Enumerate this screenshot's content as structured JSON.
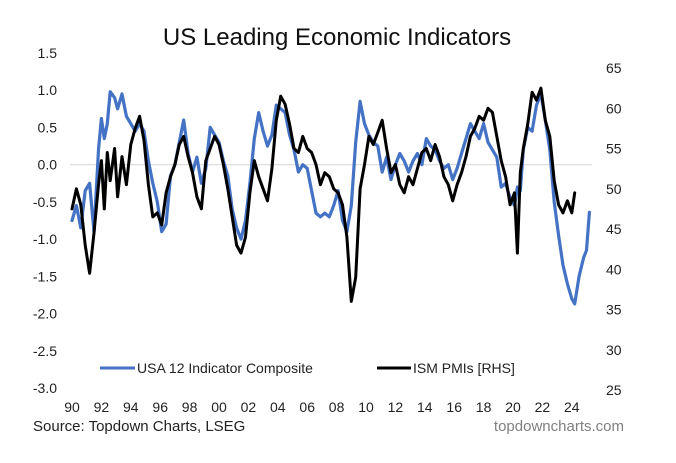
{
  "chart_data": {
    "type": "line",
    "title": "US Leading Economic Indicators",
    "xlabel": "",
    "ylabel": "",
    "y2label": "",
    "xlim": [
      1990,
      2025.5
    ],
    "ylim": [
      -3.0,
      1.5
    ],
    "y2lim": [
      25,
      65
    ],
    "x_ticks": [
      "90",
      "92",
      "94",
      "96",
      "98",
      "00",
      "02",
      "04",
      "06",
      "08",
      "10",
      "12",
      "14",
      "16",
      "18",
      "20",
      "22",
      "24"
    ],
    "x_tick_values": [
      1990,
      1992,
      1994,
      1996,
      1998,
      2000,
      2002,
      2004,
      2006,
      2008,
      2010,
      2012,
      2014,
      2016,
      2018,
      2020,
      2022,
      2024
    ],
    "y_ticks": [
      "1.5",
      "1.0",
      "0.5",
      "0.0",
      "-0.5",
      "-1.0",
      "-1.5",
      "-2.0",
      "-2.5",
      "-3.0"
    ],
    "y_tick_values": [
      1.5,
      1.0,
      0.5,
      0.0,
      -0.5,
      -1.0,
      -1.5,
      -2.0,
      -2.5,
      -3.0
    ],
    "y2_ticks": [
      "65",
      "60",
      "55",
      "50",
      "45",
      "40",
      "35",
      "30",
      "25"
    ],
    "y2_tick_values": [
      65,
      60,
      55,
      50,
      45,
      40,
      35,
      30,
      25
    ],
    "zero_line": true,
    "grid": false,
    "legend_position": "bottom",
    "series": [
      {
        "name": "USA 12 Indicator Composite",
        "axis": "left",
        "color": "#4472C4",
        "x": [
          1990.0,
          1990.3,
          1990.6,
          1990.9,
          1991.2,
          1991.5,
          1991.8,
          1992.0,
          1992.2,
          1992.4,
          1992.6,
          1992.9,
          1993.1,
          1993.4,
          1993.7,
          1994.0,
          1994.3,
          1994.6,
          1994.9,
          1995.2,
          1995.5,
          1995.8,
          1996.1,
          1996.4,
          1996.7,
          1997.0,
          1997.3,
          1997.6,
          1997.9,
          1998.2,
          1998.5,
          1998.8,
          1999.1,
          1999.4,
          1999.7,
          2000.0,
          2000.3,
          2000.6,
          2000.9,
          2001.2,
          2001.5,
          2001.8,
          2002.1,
          2002.4,
          2002.7,
          2003.0,
          2003.3,
          2003.6,
          2003.9,
          2004.2,
          2004.5,
          2004.8,
          2005.1,
          2005.4,
          2005.7,
          2006.0,
          2006.3,
          2006.6,
          2006.9,
          2007.2,
          2007.5,
          2007.8,
          2008.1,
          2008.4,
          2008.7,
          2009.0,
          2009.3,
          2009.6,
          2009.9,
          2010.2,
          2010.5,
          2010.8,
          2011.1,
          2011.4,
          2011.7,
          2012.0,
          2012.3,
          2012.6,
          2012.9,
          2013.2,
          2013.5,
          2013.8,
          2014.1,
          2014.4,
          2014.7,
          2015.0,
          2015.3,
          2015.6,
          2015.9,
          2016.2,
          2016.5,
          2016.8,
          2017.1,
          2017.4,
          2017.7,
          2018.0,
          2018.3,
          2018.6,
          2018.9,
          2019.2,
          2019.5,
          2019.8,
          2020.1,
          2020.3,
          2020.5,
          2020.7,
          2021.0,
          2021.3,
          2021.6,
          2021.9,
          2022.2,
          2022.5,
          2022.8,
          2023.1,
          2023.4,
          2023.7,
          2024.0,
          2024.2,
          2024.5,
          2024.8,
          2025.0,
          2025.2
        ],
        "values": [
          -0.75,
          -0.55,
          -0.85,
          -0.35,
          -0.25,
          -0.9,
          0.2,
          0.62,
          0.35,
          0.55,
          0.98,
          0.9,
          0.75,
          0.95,
          0.65,
          0.55,
          0.45,
          0.55,
          0.45,
          0.05,
          -0.25,
          -0.5,
          -0.9,
          -0.8,
          -0.15,
          0.0,
          0.3,
          0.6,
          0.15,
          -0.1,
          0.1,
          -0.25,
          -0.05,
          0.5,
          0.4,
          0.3,
          0.05,
          -0.15,
          -0.6,
          -0.85,
          -1.0,
          -0.75,
          -0.25,
          0.35,
          0.7,
          0.45,
          0.25,
          0.4,
          0.8,
          0.75,
          0.7,
          0.4,
          0.2,
          -0.1,
          0.0,
          -0.05,
          -0.35,
          -0.65,
          -0.7,
          -0.65,
          -0.7,
          -0.55,
          -0.35,
          -0.75,
          -0.9,
          -0.55,
          0.3,
          0.85,
          0.55,
          0.4,
          0.3,
          0.25,
          -0.1,
          0.1,
          -0.2,
          0.0,
          0.15,
          0.05,
          -0.1,
          0.05,
          0.15,
          0.0,
          0.35,
          0.25,
          0.2,
          0.05,
          -0.05,
          0.0,
          -0.2,
          -0.05,
          0.15,
          0.35,
          0.55,
          0.45,
          0.35,
          0.55,
          0.3,
          0.2,
          0.1,
          -0.3,
          -0.25,
          -0.45,
          -0.55,
          -0.3,
          -0.35,
          0.2,
          0.5,
          0.45,
          0.8,
          0.95,
          0.6,
          0.2,
          -0.5,
          -0.95,
          -1.35,
          -1.6,
          -1.8,
          -1.87,
          -1.5,
          -1.25,
          -1.15,
          -0.64
        ]
      },
      {
        "name": "ISM PMIs [RHS]",
        "axis": "right",
        "color": "#000000",
        "x": [
          1990.0,
          1990.3,
          1990.6,
          1990.9,
          1991.2,
          1991.5,
          1991.8,
          1992.0,
          1992.2,
          1992.4,
          1992.6,
          1992.9,
          1993.1,
          1993.4,
          1993.7,
          1994.0,
          1994.3,
          1994.6,
          1994.9,
          1995.2,
          1995.5,
          1995.8,
          1996.1,
          1996.4,
          1996.7,
          1997.0,
          1997.3,
          1997.6,
          1997.9,
          1998.2,
          1998.5,
          1998.8,
          1999.1,
          1999.4,
          1999.7,
          2000.0,
          2000.3,
          2000.6,
          2000.9,
          2001.2,
          2001.5,
          2001.8,
          2002.1,
          2002.4,
          2002.7,
          2003.0,
          2003.3,
          2003.6,
          2003.9,
          2004.2,
          2004.5,
          2004.8,
          2005.1,
          2005.4,
          2005.7,
          2006.0,
          2006.3,
          2006.6,
          2006.9,
          2007.2,
          2007.5,
          2007.8,
          2008.1,
          2008.4,
          2008.7,
          2009.0,
          2009.3,
          2009.6,
          2009.9,
          2010.2,
          2010.5,
          2010.8,
          2011.1,
          2011.4,
          2011.7,
          2012.0,
          2012.3,
          2012.6,
          2012.9,
          2013.2,
          2013.5,
          2013.8,
          2014.1,
          2014.4,
          2014.7,
          2015.0,
          2015.3,
          2015.6,
          2015.9,
          2016.2,
          2016.5,
          2016.8,
          2017.1,
          2017.4,
          2017.7,
          2018.0,
          2018.3,
          2018.6,
          2018.9,
          2019.2,
          2019.5,
          2019.8,
          2020.1,
          2020.3,
          2020.5,
          2020.7,
          2021.0,
          2021.3,
          2021.6,
          2021.9,
          2022.2,
          2022.5,
          2022.8,
          2023.1,
          2023.4,
          2023.7,
          2024.0,
          2024.2
        ],
        "values": [
          47.5,
          50.0,
          48.0,
          43.0,
          39.5,
          44.5,
          50.5,
          53.5,
          47.5,
          54.5,
          51.0,
          55.0,
          49.0,
          54.0,
          50.5,
          55.5,
          57.5,
          59.0,
          56.0,
          50.5,
          46.5,
          47.0,
          45.5,
          49.5,
          51.5,
          53.0,
          55.5,
          56.5,
          54.0,
          52.0,
          49.0,
          47.5,
          53.5,
          55.0,
          56.5,
          55.5,
          53.0,
          50.0,
          46.5,
          43.0,
          42.0,
          44.0,
          49.5,
          53.5,
          51.5,
          50.0,
          48.5,
          52.5,
          58.5,
          61.5,
          60.5,
          58.0,
          55.0,
          54.5,
          56.5,
          55.0,
          54.5,
          53.0,
          50.5,
          52.0,
          51.5,
          50.0,
          49.5,
          48.0,
          44.0,
          36.0,
          39.0,
          50.0,
          53.0,
          56.5,
          55.5,
          57.0,
          58.5,
          55.0,
          52.0,
          53.0,
          50.5,
          49.5,
          51.5,
          50.5,
          52.5,
          54.5,
          55.0,
          53.5,
          55.5,
          54.0,
          51.5,
          50.5,
          48.5,
          50.5,
          52.0,
          54.0,
          56.5,
          57.5,
          59.0,
          58.5,
          60.0,
          59.5,
          56.5,
          53.5,
          51.5,
          48.0,
          49.5,
          42.0,
          52.0,
          55.0,
          58.0,
          62.0,
          61.0,
          62.5,
          58.5,
          56.5,
          51.0,
          48.0,
          47.0,
          48.5,
          47.0,
          49.5
        ]
      }
    ],
    "legend": [
      "USA 12 Indicator Composite",
      "ISM PMIs [RHS]"
    ]
  },
  "footer": {
    "source": "Source: Topdown Charts, LSEG",
    "site": "topdowncharts.com"
  }
}
